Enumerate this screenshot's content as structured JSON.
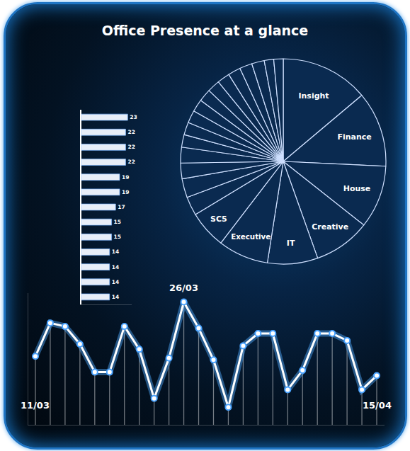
{
  "title": "Office Presence at a glance",
  "chart_data": [
    {
      "type": "bar",
      "orientation": "horizontal",
      "categories": [
        null,
        null,
        null,
        null,
        null,
        null,
        null,
        null,
        null,
        null,
        null,
        null,
        null
      ],
      "values": [
        23,
        22,
        22,
        22,
        19,
        19,
        17,
        15,
        15,
        14,
        14,
        14,
        14
      ],
      "color": "#e8eef8",
      "xlim": [
        0,
        25
      ],
      "data_labels": true,
      "tick_labels": false
    },
    {
      "type": "pie",
      "categories": [
        "Insight",
        "Finance",
        "House",
        "Creative",
        "IT",
        "Executive",
        "SC5",
        null,
        null,
        null,
        null,
        null,
        null,
        null,
        null,
        null,
        null,
        null,
        null,
        null,
        null,
        null,
        null
      ],
      "values": [
        14,
        12,
        10,
        9,
        8,
        8,
        6,
        3,
        3,
        2.5,
        2.5,
        2,
        2,
        2,
        2,
        2,
        2,
        2,
        2,
        2,
        2,
        1.5,
        1.5
      ],
      "color": "#0a2a50"
    },
    {
      "type": "line",
      "categories": [
        "11/03",
        null,
        null,
        null,
        null,
        null,
        null,
        null,
        null,
        null,
        "26/03",
        null,
        null,
        null,
        null,
        null,
        null,
        null,
        null,
        null,
        null,
        null,
        null,
        "15/04"
      ],
      "values": [
        39,
        58,
        56,
        46,
        30,
        30,
        56,
        43,
        15,
        38,
        70,
        55,
        37,
        10,
        45,
        52,
        52,
        20,
        31,
        52,
        52,
        48,
        20,
        28
      ],
      "color": "#ffffff",
      "ylim": [
        0,
        75
      ],
      "tick_labels": false,
      "marker": "circle"
    }
  ]
}
